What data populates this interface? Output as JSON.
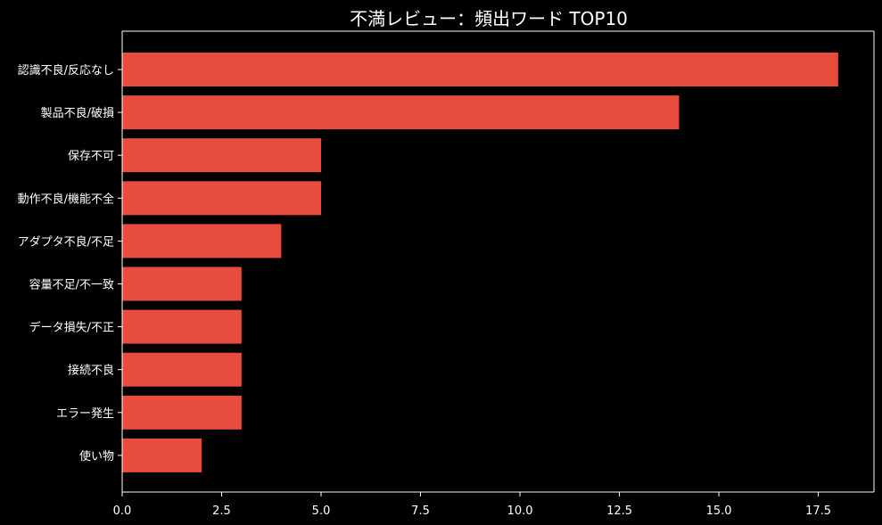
{
  "chart_data": {
    "type": "bar",
    "orientation": "horizontal",
    "title": "不満レビュー：頻出ワード TOP10",
    "xlabel": "",
    "ylabel": "",
    "categories": [
      "認識不良/反応なし",
      "製品不良/破損",
      "保存不可",
      "動作不良/機能不全",
      "アダプタ不良/不足",
      "容量不足/不一致",
      "データ損失/不正",
      "接続不良",
      "エラー発生",
      "使い物"
    ],
    "values": [
      18,
      14,
      5,
      5,
      4,
      3,
      3,
      3,
      3,
      2
    ],
    "xlim": [
      0,
      18.9
    ],
    "xticks": [
      "0.0",
      "2.5",
      "5.0",
      "7.5",
      "10.0",
      "12.5",
      "15.0",
      "17.5"
    ],
    "grid": false,
    "bar_color": "#e74c3c",
    "background": "#000000",
    "text_color": "#ffffff"
  }
}
